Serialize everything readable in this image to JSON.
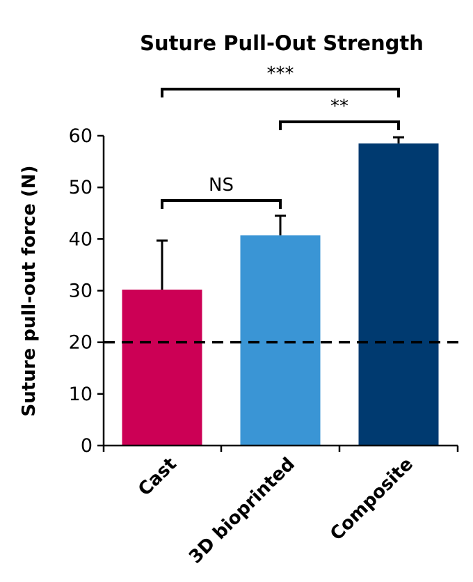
{
  "chart_data": {
    "type": "bar",
    "title": "Suture Pull-Out Strength",
    "ylabel": "Suture pull-out force (N)",
    "xlabel": "",
    "ylim": [
      0,
      60
    ],
    "yticks": [
      0,
      10,
      20,
      30,
      40,
      50,
      60
    ],
    "yticks_labels": [
      "0",
      "10",
      "20",
      "30",
      "40",
      "50",
      "60"
    ],
    "categories": [
      "Cast",
      "3D bioprinted",
      "Composite"
    ],
    "values": [
      30.2,
      40.7,
      58.5
    ],
    "errors": [
      9.5,
      3.8,
      1.2
    ],
    "colors": [
      "#cc0055",
      "#3a95d5",
      "#003a70"
    ],
    "reference_line": {
      "value": 20,
      "style": "dashed"
    },
    "grid": false,
    "significance": [
      {
        "from": 0,
        "to": 1,
        "label": "NS"
      },
      {
        "from": 1,
        "to": 2,
        "label": "**"
      },
      {
        "from": 0,
        "to": 2,
        "label": "***"
      }
    ]
  }
}
